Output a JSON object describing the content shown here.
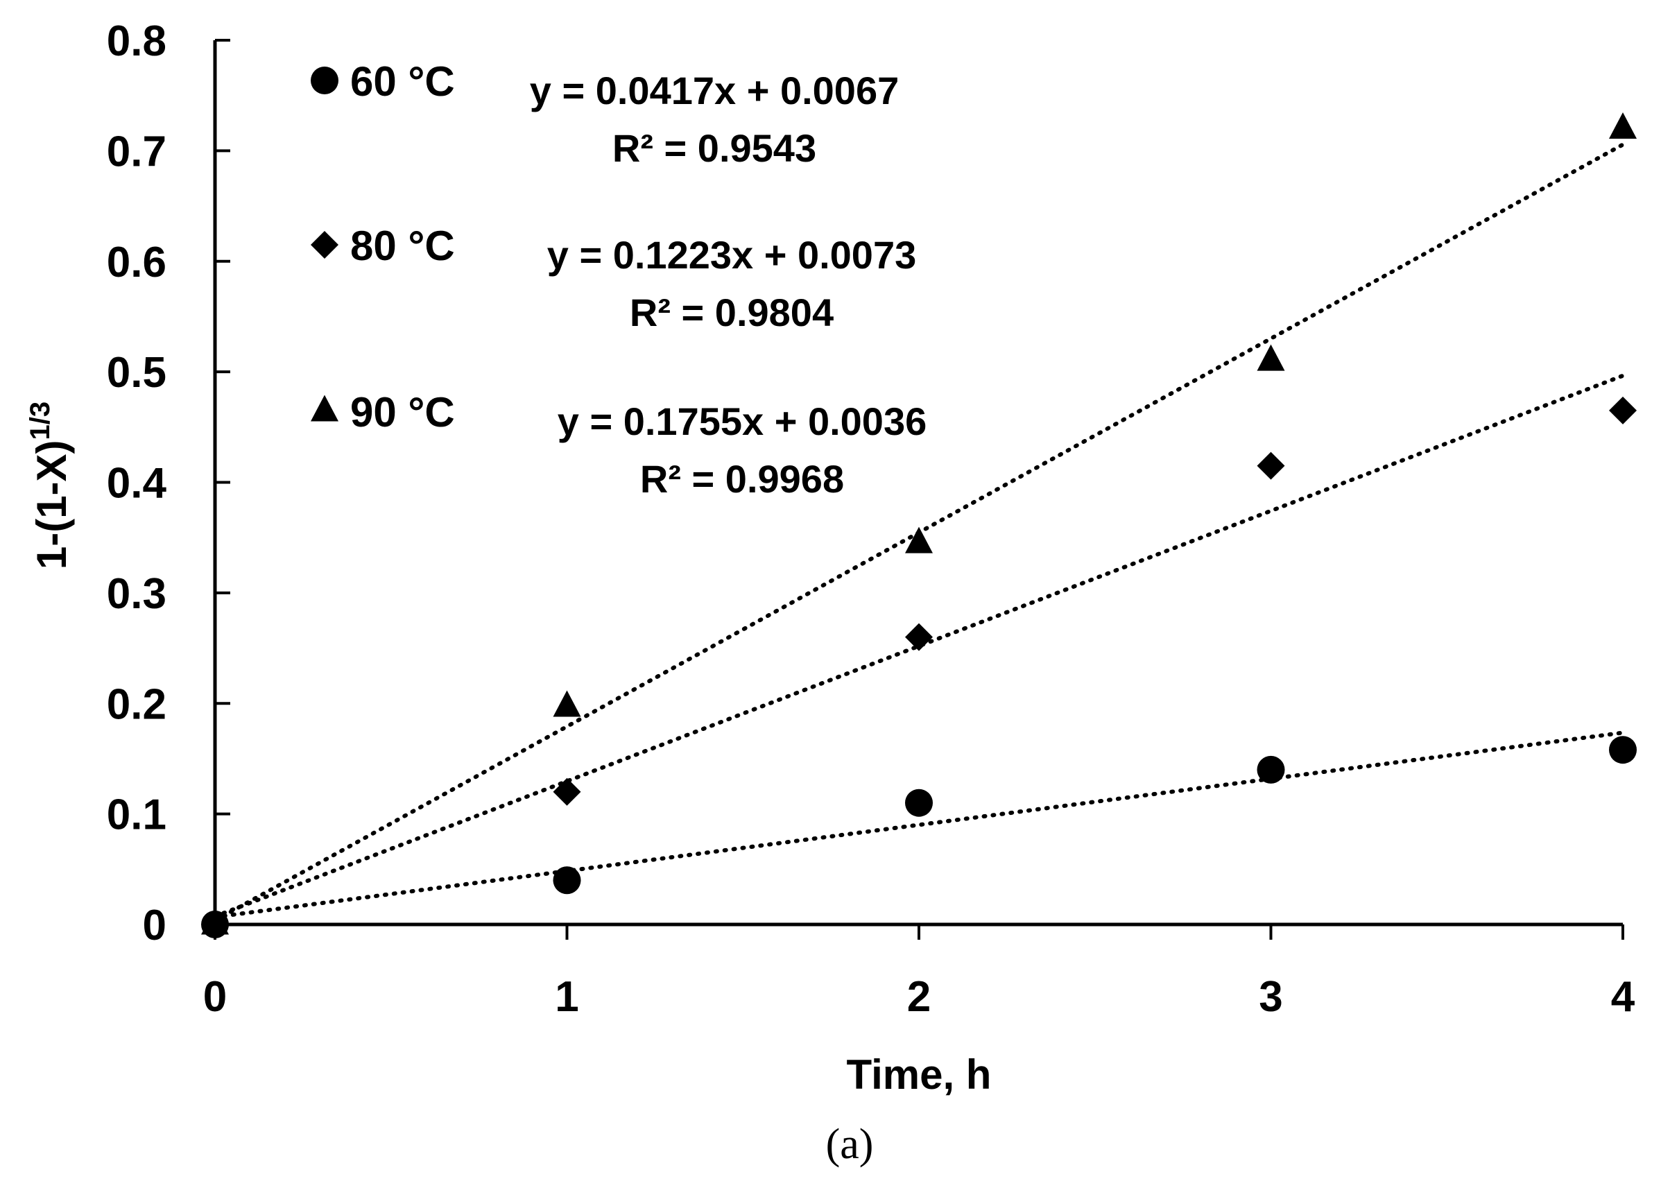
{
  "chart_data": {
    "type": "scatter",
    "title": "",
    "xlabel": "Time, h",
    "ylabel": "1-(1-X)",
    "ylabel_superscript": "1/3",
    "xlim": [
      0,
      4
    ],
    "ylim": [
      0,
      0.8
    ],
    "x_ticks": [
      "0",
      "1",
      "2",
      "3",
      "4"
    ],
    "y_ticks": [
      "0",
      "0.1",
      "0.2",
      "0.3",
      "0.4",
      "0.5",
      "0.6",
      "0.7",
      "0.8"
    ],
    "grid": false,
    "legend_position": "top-left",
    "caption": "(a)",
    "series": [
      {
        "name": "60 °C",
        "marker": "circle",
        "x": [
          0,
          1,
          2,
          3,
          4
        ],
        "y": [
          0,
          0.04,
          0.11,
          0.14,
          0.158
        ],
        "trendline": {
          "slope": 0.0417,
          "intercept": 0.0067,
          "style": "dotted"
        },
        "equation": "y = 0.0417x + 0.0067",
        "r2": "R² = 0.9543"
      },
      {
        "name": "80 °C",
        "marker": "diamond",
        "x": [
          0,
          1,
          2,
          3,
          4
        ],
        "y": [
          0,
          0.12,
          0.26,
          0.415,
          0.465
        ],
        "trendline": {
          "slope": 0.1223,
          "intercept": 0.0073,
          "style": "dotted"
        },
        "equation": "y = 0.1223x + 0.0073",
        "r2": "R² = 0.9804"
      },
      {
        "name": "90 °C",
        "marker": "triangle",
        "x": [
          0,
          1,
          2,
          3,
          4
        ],
        "y": [
          0,
          0.197,
          0.345,
          0.51,
          0.72
        ],
        "trendline": {
          "slope": 0.1755,
          "intercept": 0.0036,
          "style": "dotted"
        },
        "equation": "y = 0.1755x + 0.0036",
        "r2": "R² = 0.9968"
      }
    ]
  },
  "colors": {
    "ink": "#000000",
    "background": "#ffffff"
  }
}
